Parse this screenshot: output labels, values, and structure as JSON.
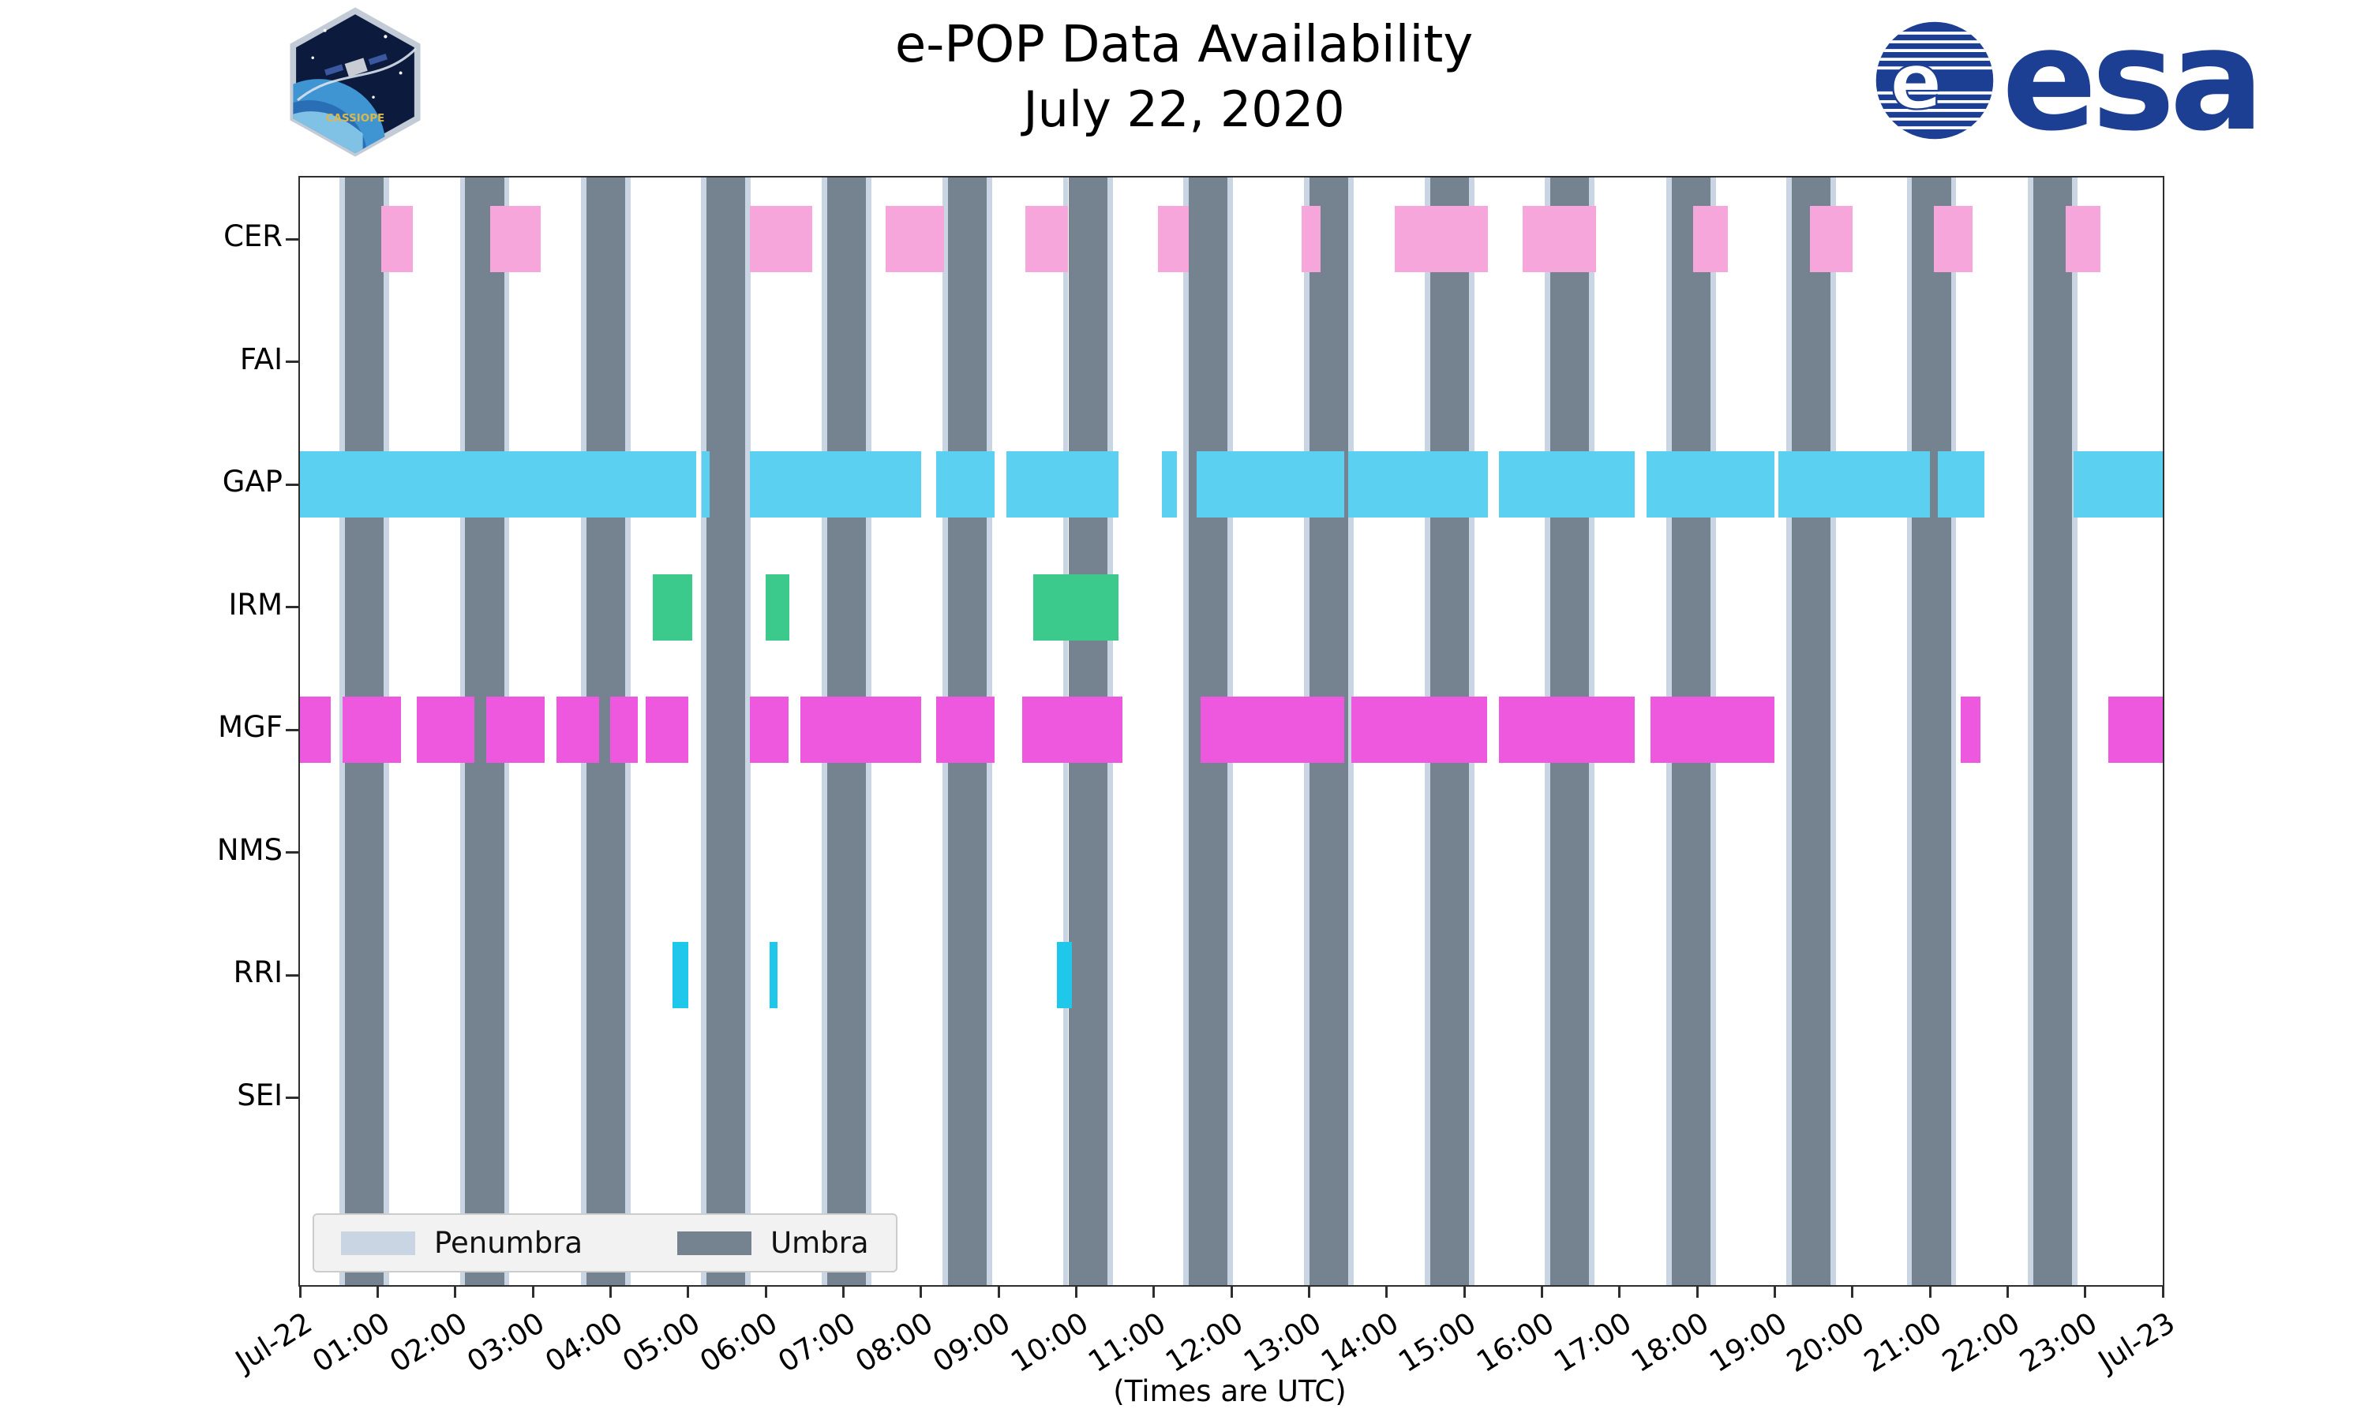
{
  "header": {
    "title": "e-POP Data Availability",
    "date": "July 22, 2020",
    "esa_wordmark": "esa",
    "patch_text": "CASSIOPE"
  },
  "legend": {
    "penumbra": "Penumbra",
    "umbra": "Umbra"
  },
  "chart_data": {
    "type": "bar",
    "subtype": "horizontal-availability-timeline",
    "title": "e-POP Data Availability",
    "subtitle": "July 22, 2020",
    "xlabel": "(Times are UTC)",
    "x_unit": "hours UTC",
    "xlim": [
      0,
      24
    ],
    "x_ticks": [
      "Jul-22",
      "01:00",
      "02:00",
      "03:00",
      "04:00",
      "05:00",
      "06:00",
      "07:00",
      "08:00",
      "09:00",
      "10:00",
      "11:00",
      "12:00",
      "13:00",
      "14:00",
      "15:00",
      "16:00",
      "17:00",
      "18:00",
      "19:00",
      "20:00",
      "21:00",
      "22:00",
      "23:00",
      "Jul-23"
    ],
    "rows": [
      "CER",
      "FAI",
      "GAP",
      "IRM",
      "MGF",
      "NMS",
      "RRI",
      "SEI"
    ],
    "series": {
      "CER": [
        [
          1.05,
          1.45
        ],
        [
          2.45,
          3.1
        ],
        [
          5.8,
          6.6
        ],
        [
          7.55,
          8.3
        ],
        [
          9.35,
          9.9
        ],
        [
          11.05,
          11.45
        ],
        [
          12.9,
          13.15
        ],
        [
          14.1,
          15.3
        ],
        [
          15.75,
          16.7
        ],
        [
          17.95,
          18.4
        ],
        [
          19.45,
          20.0
        ],
        [
          21.05,
          21.55
        ],
        [
          22.75,
          23.2
        ]
      ],
      "FAI": [],
      "GAP": [
        [
          0.0,
          5.1
        ],
        [
          5.18,
          5.28
        ],
        [
          5.8,
          8.0
        ],
        [
          8.2,
          8.95
        ],
        [
          9.1,
          10.55
        ],
        [
          11.1,
          11.3
        ],
        [
          11.55,
          13.45
        ],
        [
          13.5,
          15.3
        ],
        [
          15.45,
          17.2
        ],
        [
          17.35,
          19.0
        ],
        [
          19.05,
          21.0
        ],
        [
          21.1,
          21.7
        ],
        [
          22.85,
          24.0
        ]
      ],
      "IRM": [
        [
          4.55,
          5.05
        ],
        [
          6.0,
          6.3
        ],
        [
          9.45,
          10.55
        ]
      ],
      "MGF": [
        [
          0.0,
          0.4
        ],
        [
          0.55,
          1.3
        ],
        [
          1.5,
          2.25
        ],
        [
          2.4,
          3.15
        ],
        [
          3.3,
          3.85
        ],
        [
          4.0,
          4.35
        ],
        [
          4.45,
          5.0
        ],
        [
          5.8,
          6.3
        ],
        [
          6.45,
          8.0
        ],
        [
          8.2,
          8.95
        ],
        [
          9.3,
          10.6
        ],
        [
          11.6,
          13.45
        ],
        [
          13.55,
          15.3
        ],
        [
          15.45,
          17.2
        ],
        [
          17.4,
          19.0
        ],
        [
          21.4,
          21.65
        ],
        [
          23.3,
          24.0
        ]
      ],
      "NMS": [],
      "RRI": [
        [
          4.8,
          5.0
        ],
        [
          6.05,
          6.15
        ],
        [
          9.75,
          9.95
        ]
      ],
      "SEI": []
    },
    "umbra_intervals": [
      [
        0.58,
        1.08
      ],
      [
        2.13,
        2.63
      ],
      [
        3.69,
        4.19
      ],
      [
        5.24,
        5.74
      ],
      [
        6.79,
        7.29
      ],
      [
        8.35,
        8.85
      ],
      [
        9.9,
        10.4
      ],
      [
        11.45,
        11.95
      ],
      [
        13.01,
        13.51
      ],
      [
        14.56,
        15.06
      ],
      [
        16.11,
        16.61
      ],
      [
        17.67,
        18.17
      ],
      [
        19.22,
        19.72
      ],
      [
        20.77,
        21.27
      ],
      [
        22.33,
        22.83
      ]
    ],
    "penumbra_edge_hours": 0.07,
    "colors": {
      "CER": "#f6a6da",
      "GAP": "#5bd0f1",
      "IRM": "#3bc98c",
      "MGF": "#ee58de",
      "RRI": "#1fc8ea",
      "umbra": "#75828f",
      "penumbra": "#c9d5e2"
    },
    "legend": [
      "Penumbra",
      "Umbra"
    ],
    "legend_position": "lower left",
    "grid": false
  }
}
